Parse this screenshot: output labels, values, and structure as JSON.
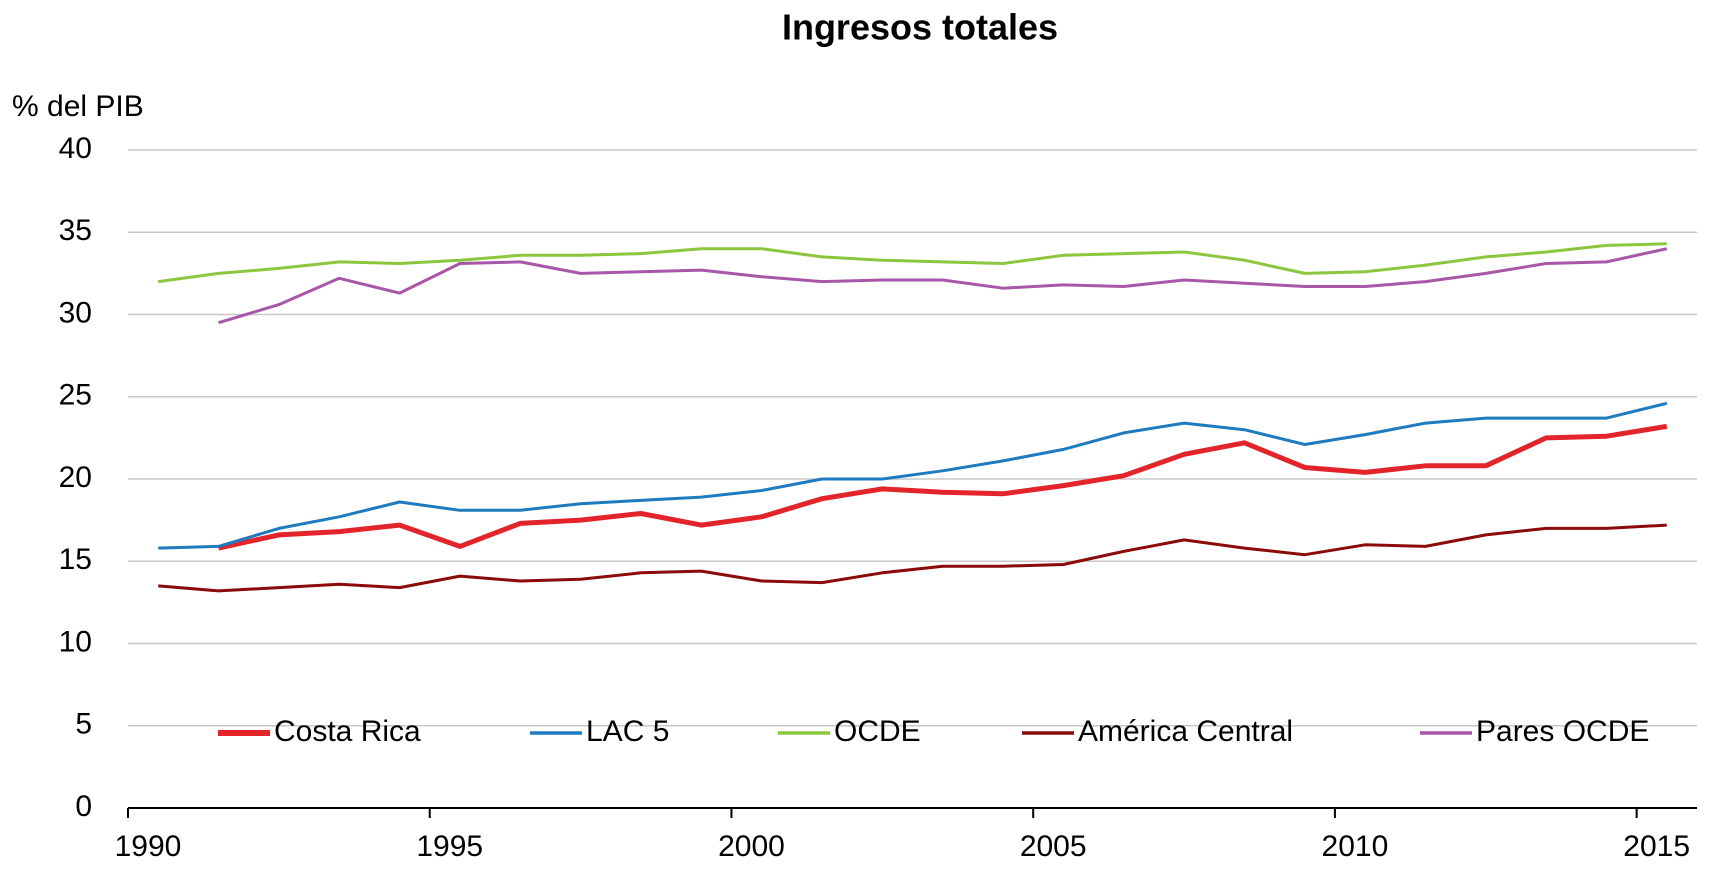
{
  "chart_data": {
    "type": "line",
    "title": "Ingresos totales",
    "y_label": "% del PIB",
    "categories": [
      "1990",
      null,
      null,
      null,
      null,
      "1995",
      null,
      null,
      null,
      null,
      "2000",
      null,
      null,
      null,
      null,
      "2005",
      null,
      null,
      null,
      null,
      "2010",
      null,
      null,
      null,
      null,
      "2015"
    ],
    "series": [
      {
        "name": "Costa Rica",
        "color": "#e3242b",
        "values": [
          null,
          15.8,
          16.6,
          16.8,
          17.2,
          15.9,
          17.3,
          17.5,
          17.9,
          17.2,
          17.7,
          18.8,
          19.4,
          19.2,
          19.1,
          19.6,
          20.2,
          21.5,
          22.2,
          20.7,
          20.4,
          20.8,
          20.8,
          22.5,
          22.6,
          23.2
        ]
      },
      {
        "name": "LAC 5",
        "color": "#1f7bbf",
        "values": [
          15.8,
          15.9,
          17.0,
          17.7,
          18.6,
          18.1,
          18.1,
          18.5,
          18.7,
          18.9,
          19.3,
          20.0,
          20.0,
          20.5,
          21.1,
          21.8,
          22.8,
          23.4,
          23.0,
          22.1,
          22.7,
          23.4,
          23.7,
          23.7,
          23.7,
          24.6
        ]
      },
      {
        "name": "OCDE",
        "color": "#8cc63f",
        "values": [
          32.0,
          32.5,
          32.8,
          33.2,
          33.1,
          33.3,
          33.6,
          33.6,
          33.7,
          34.0,
          34.0,
          33.5,
          33.3,
          33.2,
          33.1,
          33.6,
          33.7,
          33.8,
          33.3,
          32.5,
          32.6,
          33.0,
          33.5,
          33.8,
          34.2,
          34.3
        ]
      },
      {
        "name": "América Central",
        "color": "#8b0a0a",
        "values": [
          13.5,
          13.2,
          13.4,
          13.6,
          13.4,
          14.1,
          13.8,
          13.9,
          14.3,
          14.4,
          13.8,
          13.7,
          14.3,
          14.7,
          14.7,
          14.8,
          15.6,
          16.3,
          15.8,
          15.4,
          16.0,
          15.9,
          16.6,
          17.0,
          17.0,
          17.2
        ]
      },
      {
        "name": "Pares OCDE",
        "color": "#a857a8",
        "values": [
          null,
          29.5,
          30.6,
          32.2,
          31.3,
          33.1,
          33.2,
          32.5,
          32.6,
          32.7,
          32.3,
          32.0,
          32.1,
          32.1,
          31.6,
          31.8,
          31.7,
          32.1,
          31.9,
          31.7,
          31.7,
          32.0,
          32.5,
          33.1,
          33.2,
          34.0
        ]
      }
    ],
    "ylim": [
      0,
      40
    ],
    "yticks": [
      0,
      5,
      10,
      15,
      20,
      25,
      30,
      35,
      40
    ],
    "grid": true,
    "legend": "bottom"
  }
}
